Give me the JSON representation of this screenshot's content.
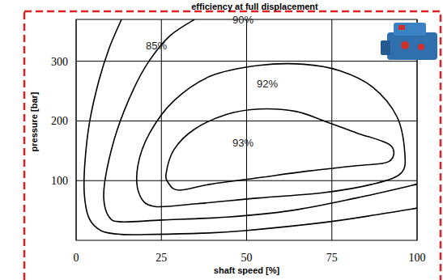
{
  "chart_data": {
    "type": "line",
    "title": "efficiency at full displacement",
    "x_label": "shaft speed [%]",
    "y_label": "pressure [bar]",
    "xlim": [
      0,
      100
    ],
    "ylim": [
      0,
      370
    ],
    "xticks": [
      0,
      25,
      50,
      75,
      100
    ],
    "yticks": [
      100,
      200,
      300
    ],
    "grid": true,
    "series": [
      {
        "name": "85%",
        "color": "#000000",
        "x": [
          13.3,
          9.7,
          6.7,
          4.0,
          2.6,
          2.4,
          3.8,
          7.4,
          13.3,
          22.8,
          37,
          48.9,
          72.7,
          89.3,
          100
        ],
        "values": [
          370,
          322,
          268,
          200,
          132,
          78,
          37,
          16,
          10,
          10,
          12,
          16,
          30,
          44,
          54
        ]
      },
      {
        "name": "90%",
        "color": "#000000",
        "x": [
          34.7,
          27.6,
          21.6,
          16.9,
          12.1,
          9.0,
          8.1,
          9.7,
          13.3,
          25.2,
          44.2,
          63.2,
          82.2,
          100
        ],
        "values": [
          370,
          343,
          302,
          254,
          186,
          118,
          71,
          39,
          31,
          34,
          39,
          50,
          71,
          94
        ]
      },
      {
        "name": "92%",
        "color": "#000000",
        "x": [
          18.1,
          21.6,
          28.7,
          39.4,
          53.7,
          66.7,
          77.4,
          86.9,
          94.1,
          96.4,
          95.2,
          86.9,
          72.7,
          53.7,
          34.7,
          22.8,
          18.5,
          18.1
        ],
        "values": [
          125,
          180,
          234,
          275,
          293,
          295,
          284,
          257,
          207,
          146,
          112,
          94,
          80,
          71,
          61,
          57,
          78,
          125
        ]
      },
      {
        "name": "93%",
        "color": "#000000",
        "x": [
          26.4,
          28.7,
          34.7,
          44.2,
          53.7,
          64.4,
          72.7,
          82.2,
          92.2,
          91.7,
          82.2,
          67.9,
          53.7,
          39.4,
          30.2,
          27.2,
          26.4
        ],
        "values": [
          112,
          152,
          186,
          211,
          220,
          216,
          200,
          180,
          159,
          132,
          125,
          116,
          105,
          94,
          84,
          95,
          112
        ]
      }
    ]
  }
}
